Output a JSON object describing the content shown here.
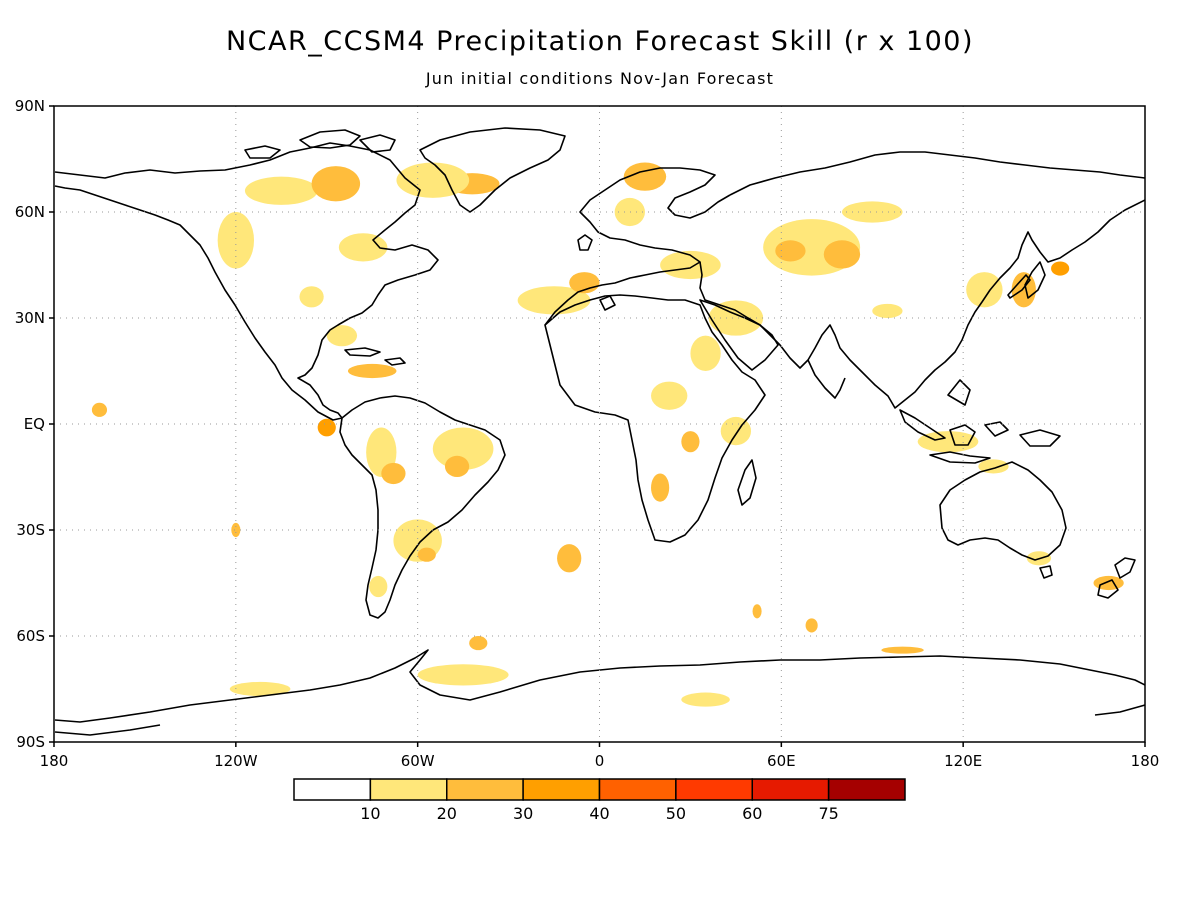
{
  "title": "NCAR_CCSM4 Precipitation Forecast Skill (r x 100)",
  "subtitle": "Jun initial conditions  Nov-Jan Forecast",
  "map": {
    "projection": "equirectangular",
    "lon_range": [
      -180,
      180
    ],
    "lat_range": [
      -90,
      90
    ],
    "grid": true,
    "lat_ticks": [
      {
        "value": 90,
        "label": "90N"
      },
      {
        "value": 60,
        "label": "60N"
      },
      {
        "value": 30,
        "label": "30N"
      },
      {
        "value": 0,
        "label": "EQ"
      },
      {
        "value": -30,
        "label": "30S"
      },
      {
        "value": -60,
        "label": "60S"
      },
      {
        "value": -90,
        "label": "90S"
      }
    ],
    "lon_ticks": [
      {
        "value": -180,
        "label": "180"
      },
      {
        "value": -120,
        "label": "120W"
      },
      {
        "value": -60,
        "label": "60W"
      },
      {
        "value": 0,
        "label": "0"
      },
      {
        "value": 60,
        "label": "60E"
      },
      {
        "value": 120,
        "label": "120E"
      },
      {
        "value": 180,
        "label": "180"
      }
    ]
  },
  "colorbar": {
    "colors": [
      "#ffffff",
      "#ffe77a",
      "#ffbd3c",
      "#ff9f00",
      "#ff6100",
      "#ff3a00",
      "#e61a00",
      "#a50000"
    ],
    "labels": [
      "10",
      "20",
      "30",
      "40",
      "50",
      "60",
      "75"
    ]
  },
  "skill_regions": [
    {
      "lon": -105,
      "lat": 66,
      "rx": 12,
      "ry": 4,
      "level": 1
    },
    {
      "lon": -87,
      "lat": 68,
      "rx": 8,
      "ry": 5,
      "level": 2
    },
    {
      "lon": -42,
      "lat": 68,
      "rx": 9,
      "ry": 3,
      "level": 2
    },
    {
      "lon": -55,
      "lat": 69,
      "rx": 12,
      "ry": 5,
      "level": 1
    },
    {
      "lon": -120,
      "lat": 52,
      "rx": 6,
      "ry": 8,
      "level": 1
    },
    {
      "lon": -78,
      "lat": 50,
      "rx": 8,
      "ry": 4,
      "level": 1
    },
    {
      "lon": -95,
      "lat": 36,
      "rx": 4,
      "ry": 3,
      "level": 1
    },
    {
      "lon": -85,
      "lat": 25,
      "rx": 5,
      "ry": 3,
      "level": 1
    },
    {
      "lon": -75,
      "lat": 15,
      "rx": 8,
      "ry": 2,
      "level": 2
    },
    {
      "lon": -165,
      "lat": 4,
      "rx": 2.5,
      "ry": 2,
      "level": 2
    },
    {
      "lon": -90,
      "lat": -1,
      "rx": 3,
      "ry": 2.5,
      "level": 3
    },
    {
      "lon": -72,
      "lat": -8,
      "rx": 5,
      "ry": 7,
      "level": 1
    },
    {
      "lon": -68,
      "lat": -14,
      "rx": 4,
      "ry": 3,
      "level": 2
    },
    {
      "lon": -45,
      "lat": -7,
      "rx": 10,
      "ry": 6,
      "level": 1
    },
    {
      "lon": -47,
      "lat": -12,
      "rx": 4,
      "ry": 3,
      "level": 2
    },
    {
      "lon": -60,
      "lat": -33,
      "rx": 8,
      "ry": 6,
      "level": 1
    },
    {
      "lon": -57,
      "lat": -37,
      "rx": 3,
      "ry": 2,
      "level": 2
    },
    {
      "lon": -73,
      "lat": -46,
      "rx": 3,
      "ry": 3,
      "level": 1
    },
    {
      "lon": -10,
      "lat": -38,
      "rx": 4,
      "ry": 4,
      "level": 2
    },
    {
      "lon": -15,
      "lat": 35,
      "rx": 12,
      "ry": 4,
      "level": 1
    },
    {
      "lon": -5,
      "lat": 40,
      "rx": 5,
      "ry": 3,
      "level": 2
    },
    {
      "lon": 15,
      "lat": 70,
      "rx": 7,
      "ry": 4,
      "level": 2
    },
    {
      "lon": 10,
      "lat": 60,
      "rx": 5,
      "ry": 4,
      "level": 1
    },
    {
      "lon": 30,
      "lat": 45,
      "rx": 10,
      "ry": 4,
      "level": 1
    },
    {
      "lon": 45,
      "lat": 30,
      "rx": 9,
      "ry": 5,
      "level": 1
    },
    {
      "lon": 70,
      "lat": 50,
      "rx": 16,
      "ry": 8,
      "level": 1
    },
    {
      "lon": 63,
      "lat": 49,
      "rx": 5,
      "ry": 3,
      "level": 2
    },
    {
      "lon": 80,
      "lat": 48,
      "rx": 6,
      "ry": 4,
      "level": 2
    },
    {
      "lon": 90,
      "lat": 60,
      "rx": 10,
      "ry": 3,
      "level": 1
    },
    {
      "lon": 95,
      "lat": 32,
      "rx": 5,
      "ry": 2,
      "level": 1
    },
    {
      "lon": 35,
      "lat": 20,
      "rx": 5,
      "ry": 5,
      "level": 1
    },
    {
      "lon": 23,
      "lat": 8,
      "rx": 6,
      "ry": 4,
      "level": 1
    },
    {
      "lon": 30,
      "lat": -5,
      "rx": 3,
      "ry": 3,
      "level": 2
    },
    {
      "lon": 20,
      "lat": -18,
      "rx": 3,
      "ry": 4,
      "level": 2
    },
    {
      "lon": 45,
      "lat": -2,
      "rx": 5,
      "ry": 4,
      "level": 1
    },
    {
      "lon": 127,
      "lat": 38,
      "rx": 6,
      "ry": 5,
      "level": 1
    },
    {
      "lon": 140,
      "lat": 38,
      "rx": 4,
      "ry": 5,
      "level": 2
    },
    {
      "lon": 152,
      "lat": 44,
      "rx": 3,
      "ry": 2,
      "level": 3
    },
    {
      "lon": 115,
      "lat": -5,
      "rx": 10,
      "ry": 3,
      "level": 1
    },
    {
      "lon": 130,
      "lat": -12,
      "rx": 5,
      "ry": 2,
      "level": 1
    },
    {
      "lon": 145,
      "lat": -38,
      "rx": 4,
      "ry": 2,
      "level": 1
    },
    {
      "lon": 168,
      "lat": -45,
      "rx": 5,
      "ry": 2,
      "level": 2
    },
    {
      "lon": 70,
      "lat": -57,
      "rx": 2,
      "ry": 2,
      "level": 2
    },
    {
      "lon": 52,
      "lat": -53,
      "rx": 1.5,
      "ry": 2,
      "level": 2
    },
    {
      "lon": -45,
      "lat": -71,
      "rx": 15,
      "ry": 3,
      "level": 1
    },
    {
      "lon": 35,
      "lat": -78,
      "rx": 8,
      "ry": 2,
      "level": 1
    },
    {
      "lon": -112,
      "lat": -75,
      "rx": 10,
      "ry": 2,
      "level": 1
    },
    {
      "lon": 100,
      "lat": -64,
      "rx": 7,
      "ry": 1,
      "level": 2
    },
    {
      "lon": -40,
      "lat": -62,
      "rx": 3,
      "ry": 2,
      "level": 2
    },
    {
      "lon": -120,
      "lat": -30,
      "rx": 1.5,
      "ry": 2,
      "level": 2
    }
  ]
}
